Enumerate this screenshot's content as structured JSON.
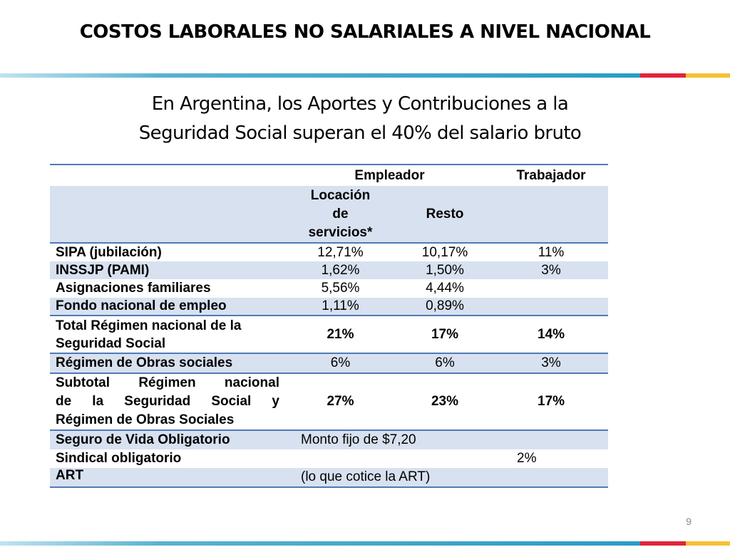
{
  "slide": {
    "title": "COSTOS LABORALES NO SALARIALES A NIVEL NACIONAL",
    "subtitle_line1": "En Argentina, los Aportes y Contribuciones a la",
    "subtitle_line2": "Seguridad Social superan el 40% del salario bruto",
    "page_number": "9"
  },
  "table": {
    "header1": {
      "empleador": "Empleador",
      "trabajador": "Trabajador"
    },
    "header2": {
      "locacion_l1": "Locación",
      "locacion_l2": "de",
      "locacion_l3": "servicios*",
      "resto": "Resto"
    },
    "rows": [
      {
        "label": "SIPA (jubilación)",
        "locacion": "12,71%",
        "resto": "10,17%",
        "trabajador": "11%"
      },
      {
        "label": "INSSJP (PAMI)",
        "locacion": "1,62%",
        "resto": "1,50%",
        "trabajador": "3%"
      },
      {
        "label": "Asignaciones familiares",
        "locacion": "5,56%",
        "resto": "4,44%",
        "trabajador": ""
      },
      {
        "label": "Fondo nacional de empleo",
        "locacion": "1,11%",
        "resto": "0,89%",
        "trabajador": ""
      },
      {
        "label_l1": "Total Régimen nacional de la",
        "label_l2": "Seguridad Social",
        "locacion": "21%",
        "resto": "17%",
        "trabajador": "14%"
      },
      {
        "label": "Régimen de Obras sociales",
        "locacion": "6%",
        "resto": "6%",
        "trabajador": "3%"
      },
      {
        "label_l1": "Subtotal Régimen nacional",
        "label_l2": "de la Seguridad Social y",
        "label_l3": "Régimen de Obras Sociales",
        "locacion": "27%",
        "resto": "23%",
        "trabajador": "17%"
      },
      {
        "label": "Seguro de Vida Obligatorio",
        "note": "Monto fijo de $7,20"
      },
      {
        "label": "Sindical obligatorio",
        "trabajador": "2%"
      },
      {
        "label": "ART",
        "note": "(lo que cotice la ART)"
      }
    ]
  },
  "colors": {
    "row_band": "#d8e1ef",
    "rule": "#4f7ab8",
    "accent_red": "#e2233b",
    "accent_yellow": "#f6c133",
    "accent_blue": "#2a9cc4"
  }
}
